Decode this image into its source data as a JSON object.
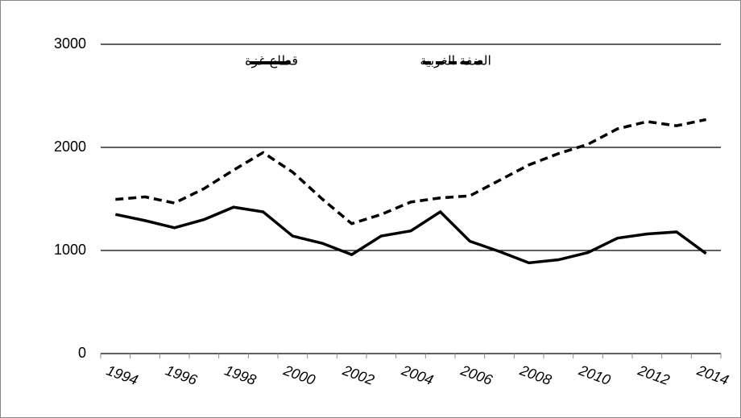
{
  "chart_data": {
    "type": "line",
    "categories": [
      "1994",
      null,
      "1996",
      null,
      "1998",
      null,
      "2000",
      null,
      "2002",
      null,
      "2004",
      null,
      "2006",
      null,
      "2008",
      null,
      "2010",
      null,
      "2012",
      null,
      "2014"
    ],
    "series": [
      {
        "name": "قطاع غزة",
        "color": "#000000",
        "dash": false,
        "values": [
          1350,
          1290,
          1220,
          1300,
          1420,
          1375,
          1140,
          1070,
          960,
          1140,
          1190,
          1375,
          1090,
          990,
          880,
          910,
          980,
          1120,
          1160,
          1180,
          970
        ]
      },
      {
        "name": "الضفة الغربية",
        "color": "#000000",
        "dash": true,
        "values": [
          1495,
          1520,
          1460,
          1600,
          1780,
          1950,
          1760,
          1500,
          1260,
          1350,
          1470,
          1510,
          1530,
          1680,
          1830,
          1940,
          2030,
          2180,
          2250,
          2210,
          2270
        ]
      }
    ],
    "ylim": [
      0,
      3000
    ],
    "yticks": [
      0,
      1000,
      2000,
      3000
    ],
    "grid": true
  }
}
